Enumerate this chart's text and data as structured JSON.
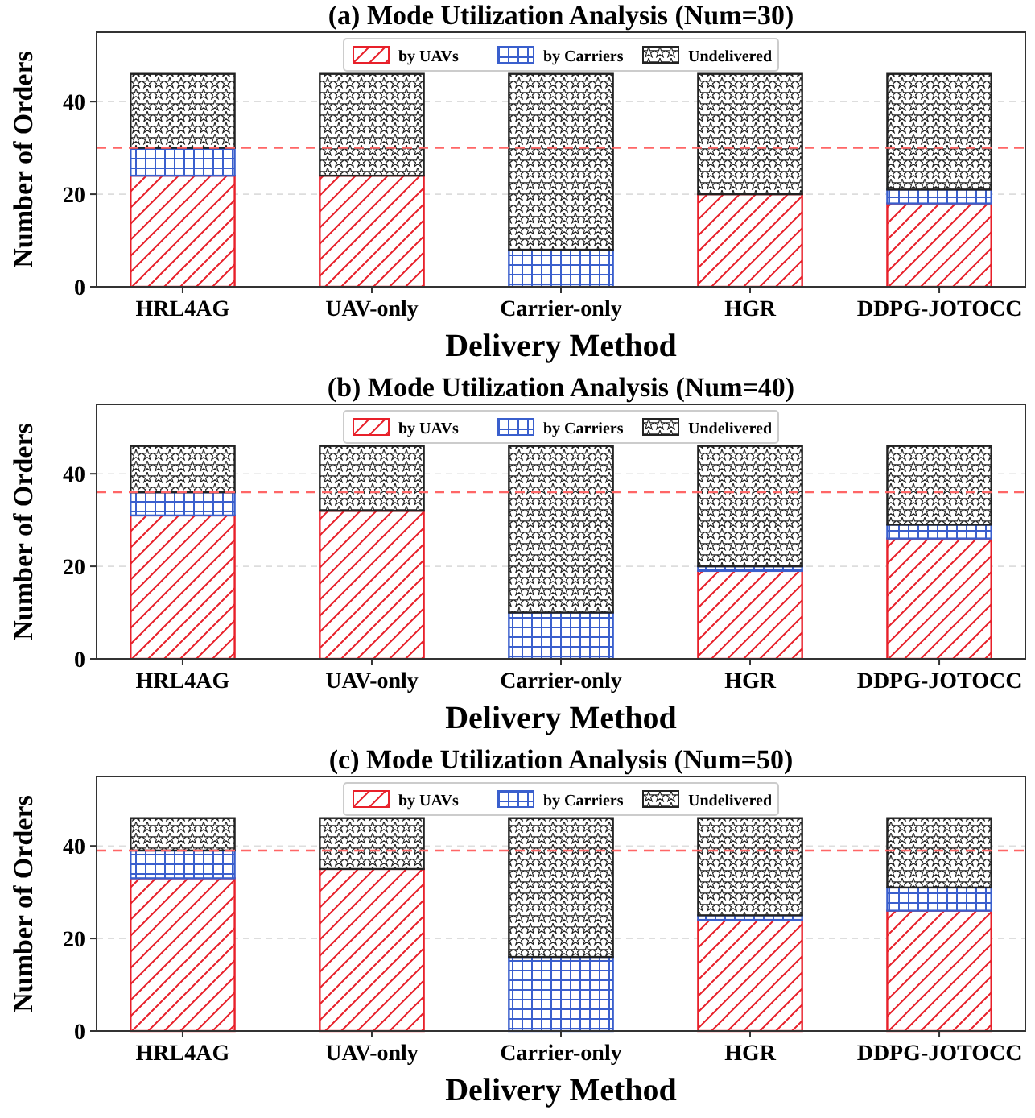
{
  "chart_data": [
    {
      "type": "bar",
      "title": "(a) Mode Utilization Analysis (Num=30)",
      "xlabel": "Delivery Method",
      "ylabel": "Number of Orders",
      "categories": [
        "HRL4AG",
        "UAV-only",
        "Carrier-only",
        "HGR",
        "DDPG-JOTOCC"
      ],
      "stacked": true,
      "ylim": [
        0,
        55
      ],
      "yticks": [
        0,
        20,
        40
      ],
      "grid": "y",
      "legend": "top",
      "ref_lines": [
        {
          "axis": "y",
          "value": 30,
          "color": "#ff6666",
          "line_style": "dashed"
        }
      ],
      "series": [
        {
          "name": "by UAVs",
          "color": "#e8202a",
          "values": [
            24,
            24,
            0,
            20,
            18
          ]
        },
        {
          "name": "by Carriers",
          "color": "#3a5fcd",
          "values": [
            6,
            0,
            8,
            0,
            3
          ]
        },
        {
          "name": "Undelivered",
          "color": "#222222",
          "values": [
            16,
            22,
            38,
            26,
            25
          ]
        }
      ]
    },
    {
      "type": "bar",
      "title": "(b) Mode Utilization Analysis (Num=40)",
      "xlabel": "Delivery Method",
      "ylabel": "Number of Orders",
      "categories": [
        "HRL4AG",
        "UAV-only",
        "Carrier-only",
        "HGR",
        "DDPG-JOTOCC"
      ],
      "stacked": true,
      "ylim": [
        0,
        55
      ],
      "yticks": [
        0,
        20,
        40
      ],
      "grid": "y",
      "legend": "top",
      "ref_lines": [
        {
          "axis": "y",
          "value": 36,
          "color": "#ff6666",
          "line_style": "dashed"
        }
      ],
      "series": [
        {
          "name": "by UAVs",
          "color": "#e8202a",
          "values": [
            31,
            32,
            0,
            19,
            26
          ]
        },
        {
          "name": "by Carriers",
          "color": "#3a5fcd",
          "values": [
            5,
            0,
            10,
            1,
            3
          ]
        },
        {
          "name": "Undelivered",
          "color": "#222222",
          "values": [
            10,
            14,
            36,
            26,
            17
          ]
        }
      ]
    },
    {
      "type": "bar",
      "title": "(c) Mode Utilization Analysis (Num=50)",
      "xlabel": "Delivery Method",
      "ylabel": "Number of Orders",
      "categories": [
        "HRL4AG",
        "UAV-only",
        "Carrier-only",
        "HGR",
        "DDPG-JOTOCC"
      ],
      "stacked": true,
      "ylim": [
        0,
        55
      ],
      "yticks": [
        0,
        20,
        40
      ],
      "grid": "y",
      "legend": "top",
      "ref_lines": [
        {
          "axis": "y",
          "value": 39,
          "color": "#ff6666",
          "line_style": "dashed"
        }
      ],
      "series": [
        {
          "name": "by UAVs",
          "color": "#e8202a",
          "values": [
            33,
            35,
            0,
            24,
            26
          ]
        },
        {
          "name": "by Carriers",
          "color": "#3a5fcd",
          "values": [
            6,
            0,
            16,
            1,
            5
          ]
        },
        {
          "name": "Undelivered",
          "color": "#222222",
          "values": [
            7,
            11,
            30,
            21,
            15
          ]
        }
      ]
    }
  ]
}
